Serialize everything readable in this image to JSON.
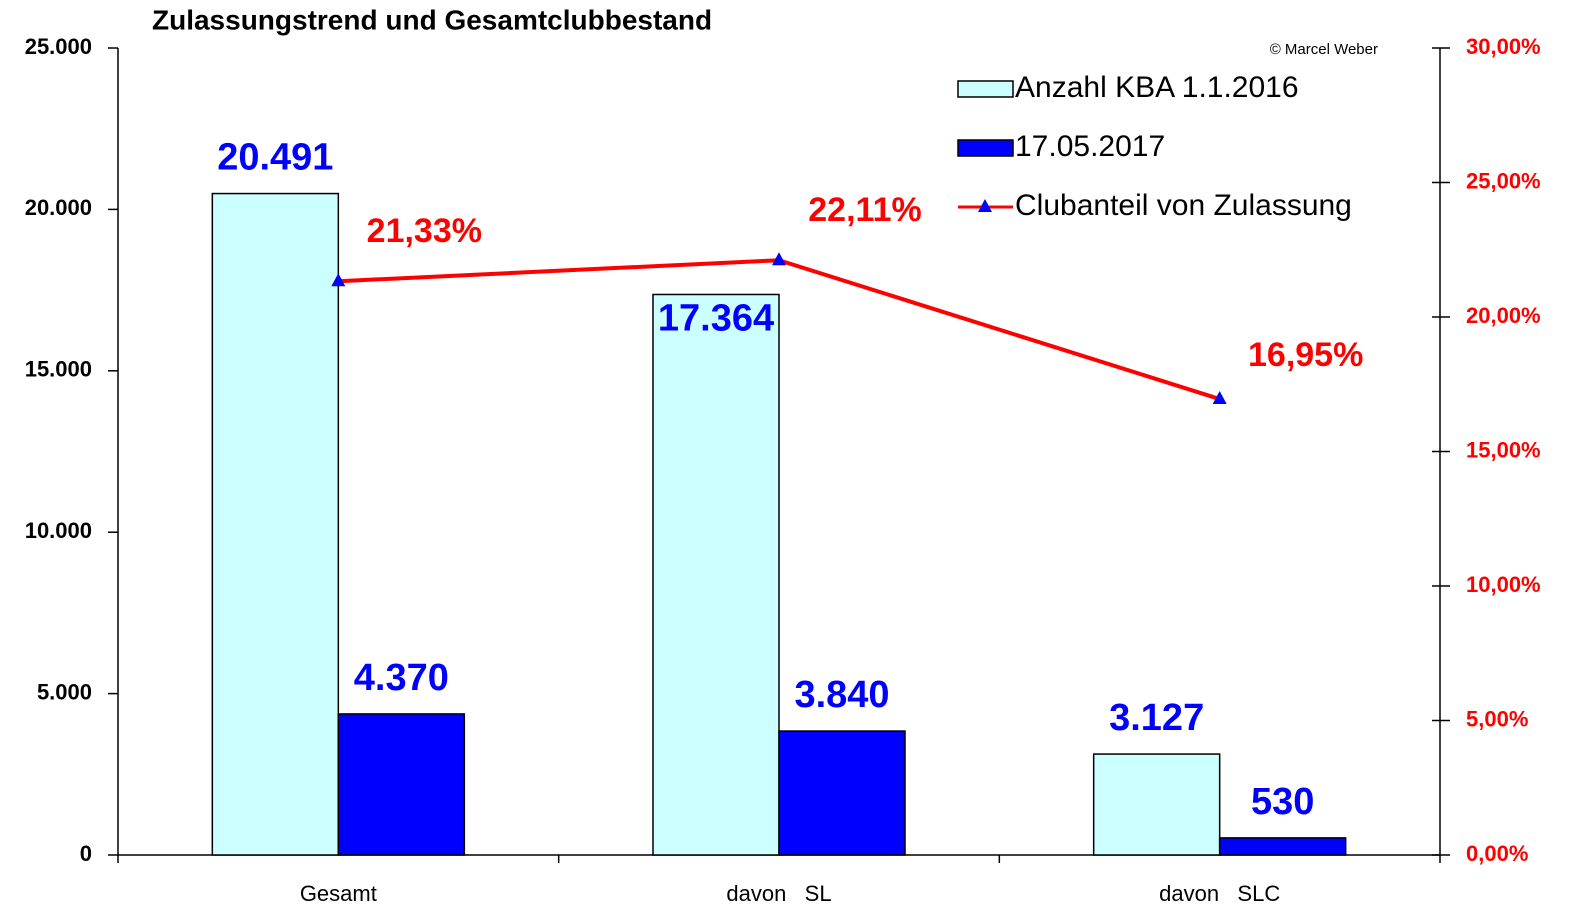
{
  "chart_data": {
    "type": "bar_line",
    "title": "Zulassungstrend und Gesamtclubbestand",
    "annotation": "© Marcel Weber",
    "categories": [
      "Gesamt",
      "davon   SL",
      "davon   SLC"
    ],
    "series": [
      {
        "name": "Anzahl KBA 1.1.2016",
        "type": "bar",
        "color": "#ccffff",
        "values": [
          20491,
          17364,
          3127
        ],
        "value_labels": [
          "20.491",
          "17.364",
          "3.127"
        ],
        "label_color": "#0000ff"
      },
      {
        "name": "17.05.2017",
        "type": "bar",
        "color": "#0000ff",
        "values": [
          4370,
          3840,
          530
        ],
        "value_labels": [
          "4.370",
          "3.840",
          "530"
        ],
        "label_color": "#0000ff"
      },
      {
        "name": "Clubanteil von Zulassung",
        "type": "line",
        "axis": "y2",
        "color": "#ff0000",
        "marker_color": "#0000ff",
        "values": [
          21.33,
          22.11,
          16.95
        ],
        "value_labels": [
          "21,33%",
          "22,11%",
          "16,95%"
        ],
        "label_color": "#ff0000"
      }
    ],
    "ylim": [
      0,
      25000
    ],
    "yticks": [
      0,
      {
        "value": 5000,
        "label": "5.000"
      },
      {
        "value": 10000,
        "label": "10.000"
      },
      {
        "value": 15000,
        "label": "15.000"
      },
      {
        "value": 20000,
        "label": "20.000"
      },
      {
        "value": 25000,
        "label": "25.000"
      }
    ],
    "y2lim": [
      0,
      30
    ],
    "y2ticks": [
      {
        "value": 0,
        "label": "0,00%"
      },
      {
        "value": 5,
        "label": "5,00%"
      },
      {
        "value": 10,
        "label": "10,00%"
      },
      {
        "value": 15,
        "label": "15,00%"
      },
      {
        "value": 20,
        "label": "20,00%"
      },
      {
        "value": 25,
        "label": "25,00%"
      },
      {
        "value": 30,
        "label": "30,00%"
      }
    ],
    "y2_label_color": "#ff0000",
    "legend": "top-right",
    "grid": false
  }
}
